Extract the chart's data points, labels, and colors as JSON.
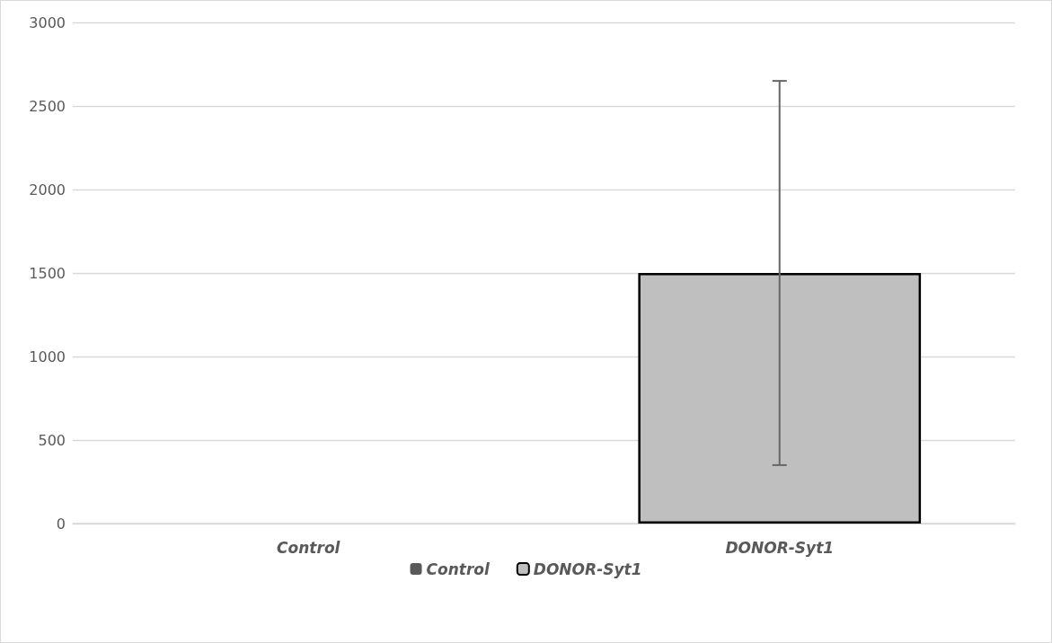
{
  "chart_data": {
    "type": "bar",
    "categories": [
      "Control",
      "DONOR-Syt1"
    ],
    "series": [
      {
        "name": "Control",
        "color": "#595959",
        "values": [
          0,
          null
        ]
      },
      {
        "name": "DONOR-Syt1",
        "color": "#bfbfbf",
        "values": [
          null,
          1500
        ],
        "errors": [
          null,
          1150
        ]
      }
    ],
    "ylim": [
      0,
      3000
    ],
    "yticks": [
      0,
      500,
      1000,
      1500,
      2000,
      2500,
      3000
    ],
    "grid": "y",
    "legend": "bottom"
  }
}
